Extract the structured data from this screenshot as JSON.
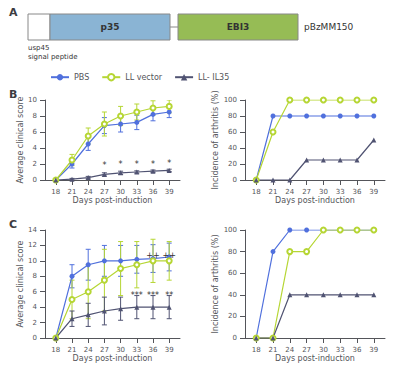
{
  "chart_data": [
    {
      "type": "diagram",
      "title": "A",
      "annotations": [
        {
          "text": "p35"
        },
        {
          "text": "EBI3"
        },
        {
          "text": "pBzMM150"
        },
        {
          "text": "usp45\nsignal peptide"
        }
      ],
      "colors": [
        "#8ab4d4",
        "#96bc55"
      ]
    },
    {
      "type": "line",
      "title": "B",
      "xlabel": "Days post-induction",
      "ylabel": "Average clinical score",
      "x": [
        18,
        21,
        24,
        27,
        30,
        33,
        36,
        39
      ],
      "xlim": [
        16,
        41
      ],
      "xticks": [
        18,
        21,
        24,
        27,
        30,
        33,
        36,
        39
      ],
      "ylim": [
        0,
        10
      ],
      "yticks": [
        0,
        2,
        4,
        6,
        8,
        10
      ],
      "grid": false,
      "legend": "upper left",
      "series": [
        {
          "name": "PBS",
          "marker": "circle",
          "values": [
            0,
            2.0,
            4.5,
            6.8,
            7.0,
            7.2,
            8.2,
            8.5
          ],
          "errors": [
            0,
            0.5,
            0.8,
            1.0,
            1.0,
            0.9,
            0.8,
            0.7
          ]
        },
        {
          "name": "LL vector",
          "marker": "emptyCircle",
          "values": [
            0,
            2.5,
            5.5,
            7.0,
            8.0,
            8.5,
            9.0,
            9.2
          ],
          "errors": [
            0,
            0.7,
            1.0,
            1.5,
            1.2,
            1.0,
            0.9,
            0.8
          ]
        },
        {
          "name": "LL- IL35",
          "marker": "triangle",
          "values": [
            0,
            0.1,
            0.3,
            0.7,
            0.9,
            1.0,
            1.1,
            1.2
          ],
          "errors": [
            0,
            0.1,
            0.15,
            0.2,
            0.2,
            0.15,
            0.15,
            0.15
          ]
        }
      ],
      "annotations": [
        {
          "text": "*",
          "x": 27,
          "y": 1.3
        },
        {
          "text": "*",
          "x": 30,
          "y": 1.4
        },
        {
          "text": "*",
          "x": 33,
          "y": 1.5
        },
        {
          "text": "*",
          "x": 36,
          "y": 1.5
        },
        {
          "text": "*",
          "x": 39,
          "y": 1.6
        }
      ]
    },
    {
      "type": "line",
      "xlabel": "Days post-induction",
      "ylabel": "Incidence of arthritis (%)",
      "x": [
        18,
        21,
        24,
        27,
        30,
        33,
        36,
        39
      ],
      "xlim": [
        16,
        41
      ],
      "xticks": [
        18,
        21,
        24,
        27,
        30,
        33,
        36,
        39
      ],
      "ylim": [
        0,
        100
      ],
      "yticks": [
        0,
        20,
        40,
        60,
        80,
        100
      ],
      "grid": false,
      "series": [
        {
          "name": "PBS",
          "marker": "circle",
          "values": [
            0,
            80,
            80,
            80,
            80,
            80,
            80,
            80
          ]
        },
        {
          "name": "LL vector",
          "marker": "emptyCircle",
          "values": [
            0,
            60,
            100,
            100,
            100,
            100,
            100,
            100
          ]
        },
        {
          "name": "LL- IL35",
          "marker": "triangle",
          "values": [
            0,
            0,
            0,
            25,
            25,
            25,
            25,
            50
          ]
        }
      ]
    },
    {
      "type": "line",
      "title": "C",
      "xlabel": "Days post-induction",
      "ylabel": "Average clinical score",
      "x": [
        18,
        21,
        24,
        27,
        30,
        33,
        36,
        39
      ],
      "xlim": [
        16,
        41
      ],
      "xticks": [
        18,
        21,
        24,
        27,
        30,
        33,
        36,
        39
      ],
      "ylim": [
        0,
        14
      ],
      "yticks": [
        0,
        2,
        4,
        6,
        8,
        10,
        12,
        14
      ],
      "grid": false,
      "series": [
        {
          "name": "PBS",
          "marker": "circle",
          "values": [
            0,
            8.0,
            9.5,
            10.0,
            10.0,
            10.2,
            10.3,
            10.5
          ],
          "errors": [
            0,
            1.5,
            2.0,
            2.0,
            2.0,
            1.8,
            1.8,
            1.8
          ]
        },
        {
          "name": "LL vector",
          "marker": "emptyCircle",
          "values": [
            0,
            5.0,
            6.0,
            7.5,
            9.0,
            9.5,
            10.0,
            10.0
          ],
          "errors": [
            0,
            2.5,
            3.5,
            4.0,
            3.5,
            3.0,
            2.8,
            2.5
          ]
        },
        {
          "name": "LL- IL35",
          "marker": "triangle",
          "values": [
            0,
            2.5,
            3.0,
            3.5,
            3.8,
            4.0,
            4.0,
            4.0
          ],
          "errors": [
            0,
            1.0,
            1.5,
            1.8,
            1.5,
            1.5,
            1.5,
            1.5
          ]
        }
      ],
      "annotations": [
        {
          "text": "***",
          "x": 33,
          "y": 5.0
        },
        {
          "text": "***",
          "x": 36,
          "y": 5.0
        },
        {
          "text": "**",
          "x": 39,
          "y": 5.0
        },
        {
          "text": "++",
          "x": 36,
          "y": 10.2
        },
        {
          "text": "++",
          "x": 39,
          "y": 10.2
        }
      ]
    },
    {
      "type": "line",
      "xlabel": "Days post-induction",
      "ylabel": "Incidence of arthritis (%)",
      "x": [
        18,
        21,
        24,
        27,
        30,
        33,
        36,
        39
      ],
      "xlim": [
        16,
        41
      ],
      "xticks": [
        18,
        21,
        24,
        27,
        30,
        33,
        36,
        39
      ],
      "ylim": [
        0,
        100
      ],
      "yticks": [
        0,
        20,
        40,
        60,
        80,
        100
      ],
      "grid": false,
      "series": [
        {
          "name": "PBS",
          "marker": "circle",
          "values": [
            0,
            80,
            100,
            100,
            100,
            100,
            100,
            100
          ]
        },
        {
          "name": "LL vector",
          "marker": "emptyCircle",
          "values": [
            0,
            0,
            80,
            80,
            100,
            100,
            100,
            100
          ]
        },
        {
          "name": "LL- IL35",
          "marker": "triangle",
          "values": [
            0,
            0,
            40,
            40,
            40,
            40,
            40,
            40
          ]
        }
      ]
    }
  ]
}
